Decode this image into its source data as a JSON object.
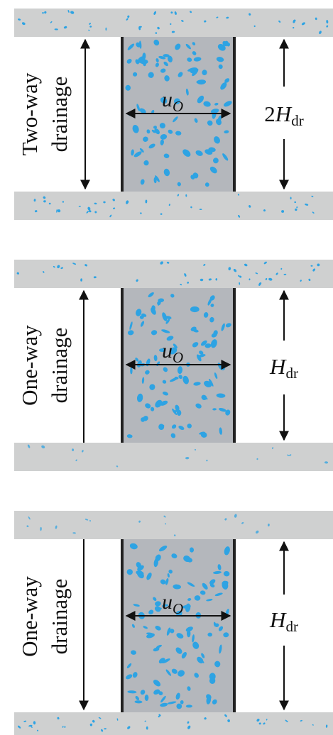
{
  "colors": {
    "sand_layer": "#cfd0d0",
    "clay_fill": "#b4b7bc",
    "clay_wall": "#222222",
    "grain": "#2ea3e3",
    "ink": "#111111"
  },
  "panels": [
    {
      "drainage_type": "Two-way",
      "drainage_word": "drainage",
      "pore_pressure_symbol": "u",
      "pore_pressure_subscript": "O",
      "height_prefix": "2",
      "height_symbol": "H",
      "height_subscript": "dr",
      "has_bottom_sand": true
    },
    {
      "drainage_type": "One-way",
      "drainage_word": "drainage",
      "pore_pressure_symbol": "u",
      "pore_pressure_subscript": "O",
      "height_prefix": "",
      "height_symbol": "H",
      "height_subscript": "dr",
      "has_bottom_sand": false
    },
    {
      "drainage_type": "One-way",
      "drainage_word": "drainage",
      "pore_pressure_symbol": "u",
      "pore_pressure_subscript": "O",
      "height_prefix": "",
      "height_symbol": "H",
      "height_subscript": "dr",
      "has_bottom_sand": true
    }
  ]
}
